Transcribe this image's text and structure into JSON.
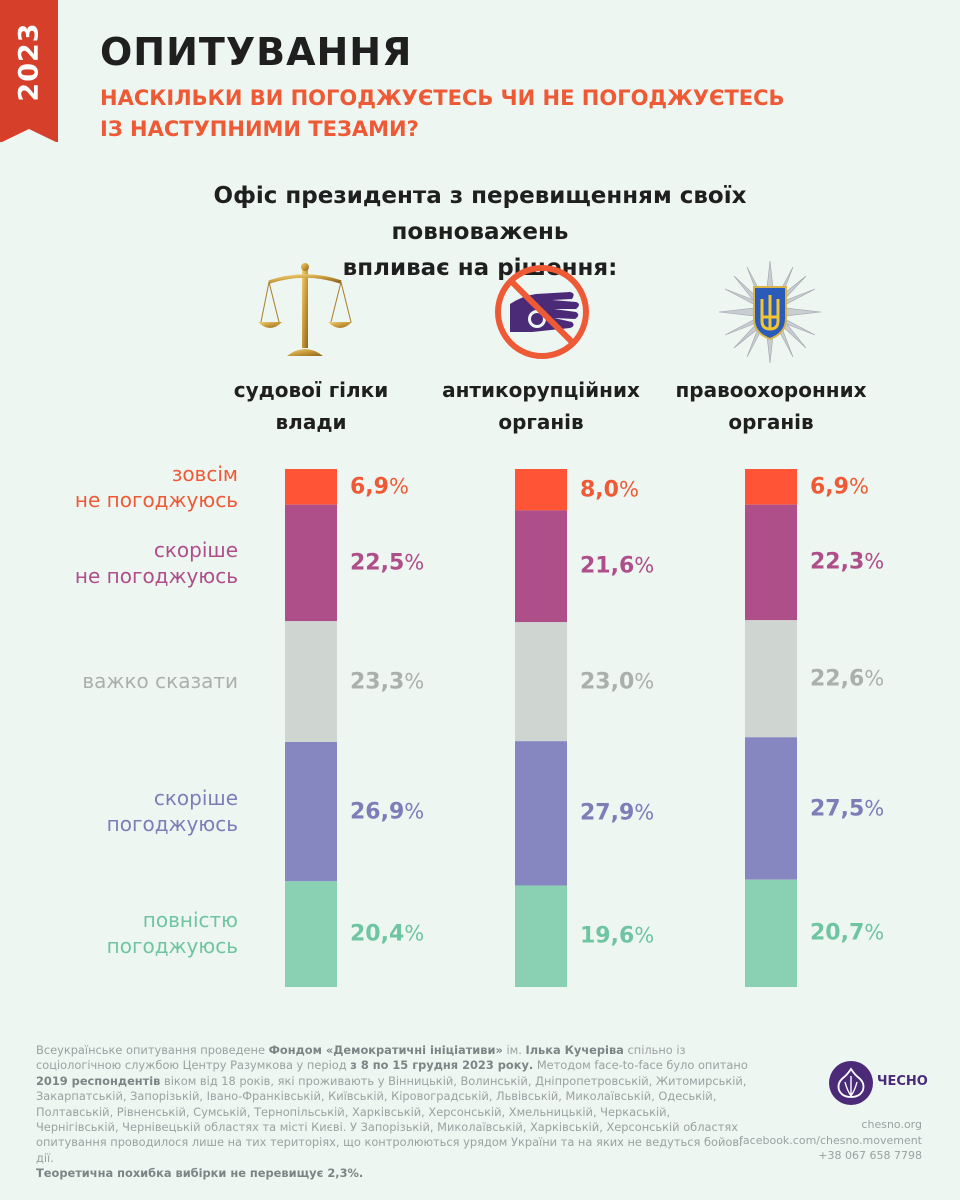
{
  "year": "2023",
  "title": "ОПИТУВАННЯ",
  "subtitle_lines": [
    "НАСКІЛЬКИ ВИ ПОГОДЖУЄТЕСЬ ЧИ НЕ ПОГОДЖУЄТЕСЬ",
    "ІЗ НАСТУПНИМИ ТЕЗАМИ?"
  ],
  "question_lines": [
    "Офіс президента з перевищенням своїх повноважень",
    "впливає на рішення:"
  ],
  "icons": [
    "scales-icon",
    "no-bribe-hand-icon",
    "police-trident-emblem-icon"
  ],
  "chart_data": {
    "type": "bar",
    "stacked": true,
    "orientation": "vertical-stacked-100",
    "categories": [
      {
        "lines": [
          "судової гілки",
          "влади"
        ]
      },
      {
        "lines": [
          "антикорупційних",
          "органів"
        ]
      },
      {
        "lines": [
          "правоохоронних",
          "органів"
        ]
      }
    ],
    "series": [
      {
        "name_lines": [
          "зовсім",
          "не погоджуюсь"
        ],
        "color": "#ff5436",
        "label_color": "#ef5a36",
        "values": [
          6.9,
          8.0,
          6.9
        ],
        "labels": [
          "6,9",
          "8,0",
          "6,9"
        ]
      },
      {
        "name_lines": [
          "скоріше",
          "не погоджуюсь"
        ],
        "color": "#ae4f8a",
        "label_color": "#ae4f8a",
        "values": [
          22.5,
          21.6,
          22.3
        ],
        "labels": [
          "22,5",
          "21,6",
          "22,3"
        ]
      },
      {
        "name_lines": [
          "важко сказати"
        ],
        "color": "#cfd6d2",
        "label_color": "#a9b0ad",
        "values": [
          23.3,
          23.0,
          22.6
        ],
        "labels": [
          "23,3",
          "23,0",
          "22,6"
        ]
      },
      {
        "name_lines": [
          "скоріше",
          "погоджуюсь"
        ],
        "color": "#8686c0",
        "label_color": "#7d7db8",
        "values": [
          26.9,
          27.9,
          27.5
        ],
        "labels": [
          "26,9",
          "27,9",
          "27,5"
        ]
      },
      {
        "name_lines": [
          "повністю",
          "погоджуюсь"
        ],
        "color": "#8ad1b4",
        "label_color": "#6fc5a3",
        "values": [
          20.4,
          19.6,
          20.7
        ],
        "labels": [
          "20,4",
          "19,6",
          "20,7"
        ]
      }
    ],
    "percent_sign": "%"
  },
  "footnote": {
    "p1": "Всеукраїнське опитування проведене ",
    "b1": "Фондом «Демократичні ініціативи»",
    "p2": " ім. ",
    "b2": "Ілька Кучеріва",
    "p3": " спільно із соціологічною службою Центру Разумкова у період ",
    "b3": "з 8 по 15 грудня 2023 року.",
    "p4": " Методом face-to-face було опитано ",
    "b4": "2019 респондентів",
    "p5": " віком від 18 років, які проживають у Вінницькій, Волинській, Дніпропетровській, Житомирській, Закарпатській, Запорізькій, Івано-Франківській, Київській, Кіровоградській, Львівській, Миколаївській, Одеській, Полтавській, Рівненській, Сумській, Тернопільській, Харківській, Херсонській, Хмельницькій, Черкаській, Чернігівській, Чернівецькій областях та місті Києві. У Запорізькій, Миколаївській, Харківській, Херсонській областях опитування проводилося лише на тих територіях, що контролюються урядом України та на яких не ведуться бойові дії.",
    "b5": "Теоретична похибка вибірки не перевищує 2,3%."
  },
  "logo": {
    "text": "ЧЕСНО",
    "color": "#4b2a78"
  },
  "contacts": [
    "chesno.org",
    "facebook.com/chesno.movement",
    "+38 067 658 7798"
  ]
}
